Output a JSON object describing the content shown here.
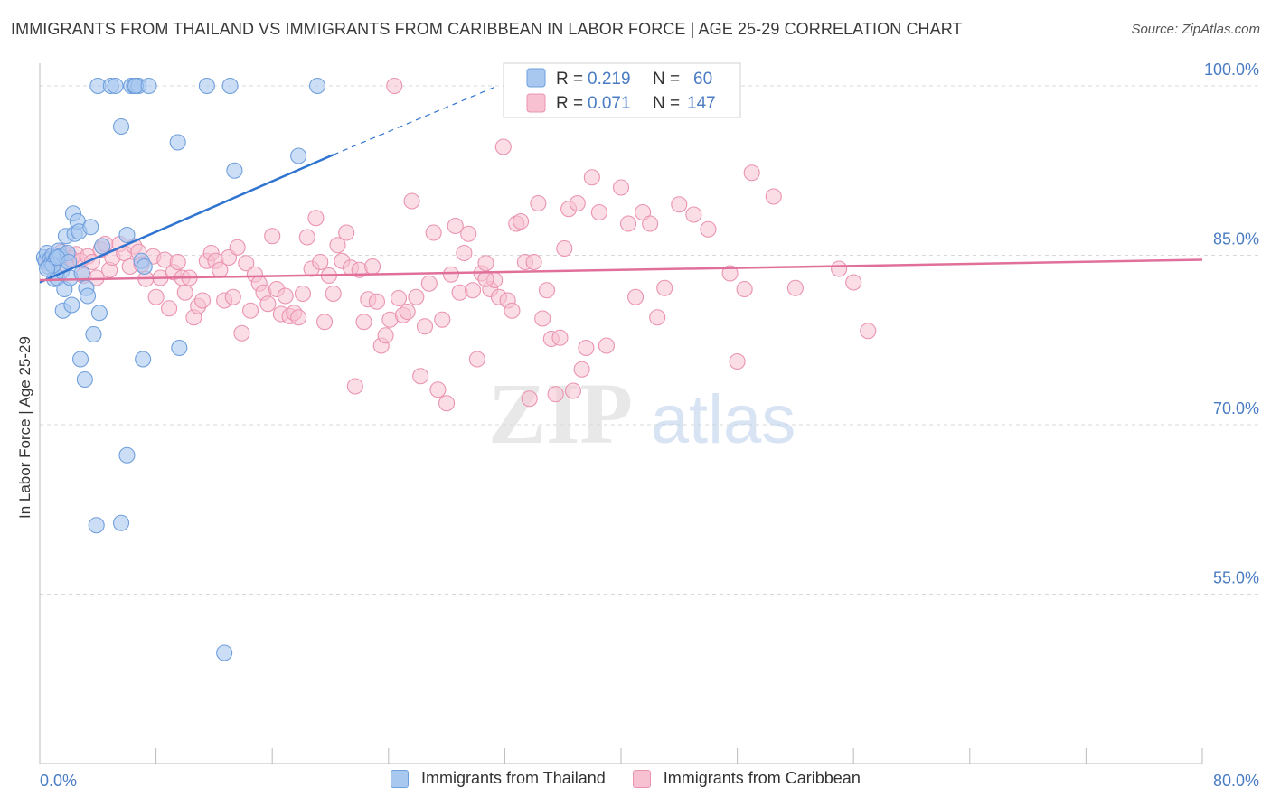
{
  "title": "IMMIGRANTS FROM THAILAND VS IMMIGRANTS FROM CARIBBEAN IN LABOR FORCE | AGE 25-29 CORRELATION CHART",
  "source": "Source: ZipAtlas.com",
  "watermark": {
    "zip": "ZIP",
    "atlas": "atlas"
  },
  "colors": {
    "thailand_fill": "#a9c8f0",
    "thailand_stroke": "#6f9fdc",
    "thailand_line": "#2f74d0",
    "caribbean_fill": "#f7c1d2",
    "caribbean_stroke": "#ea93b0",
    "caribbean_line": "#e0709a",
    "tick_label": "#4a7cc4",
    "grid": "#d8d8d8"
  },
  "legend": {
    "r_label": "R =",
    "n_label": "N =",
    "thailand": {
      "r": "0.219",
      "n": "60"
    },
    "caribbean": {
      "r": "0.071",
      "n": "147"
    }
  },
  "chart_data": {
    "type": "scatter",
    "title": "IMMIGRANTS FROM THAILAND VS IMMIGRANTS FROM CARIBBEAN IN LABOR FORCE | AGE 25-29 CORRELATION CHART",
    "xlabel": "",
    "ylabel": "In Labor Force | Age 25-29",
    "xlim": [
      0,
      80
    ],
    "ylim": [
      40,
      102
    ],
    "x_tick_labels": [
      "0.0%",
      "80.0%"
    ],
    "y_ticks": [
      55,
      70,
      85,
      100
    ],
    "y_tick_labels": [
      "55.0%",
      "70.0%",
      "85.0%",
      "100.0%"
    ],
    "grid": true,
    "legend_placement": "top-center",
    "series": [
      {
        "name": "Immigrants from Thailand",
        "trend": {
          "x": [
            0,
            20.2
          ],
          "y": [
            82.6,
            93.9
          ],
          "dashed_to": [
            31.5,
            100.0
          ]
        },
        "points": [
          [
            0.3,
            84.8
          ],
          [
            0.4,
            84.5
          ],
          [
            0.5,
            85.2
          ],
          [
            0.6,
            84.0
          ],
          [
            0.7,
            84.6
          ],
          [
            0.8,
            84.3
          ],
          [
            0.9,
            85.0
          ],
          [
            1.0,
            82.9
          ],
          [
            1.1,
            84.7
          ],
          [
            1.2,
            83.0
          ],
          [
            1.3,
            85.4
          ],
          [
            1.4,
            84.9
          ],
          [
            1.5,
            83.6
          ],
          [
            1.6,
            80.1
          ],
          [
            1.7,
            82.0
          ],
          [
            1.8,
            86.7
          ],
          [
            1.9,
            85.2
          ],
          [
            2.1,
            83.0
          ],
          [
            2.2,
            80.6
          ],
          [
            2.3,
            88.7
          ],
          [
            2.4,
            86.9
          ],
          [
            2.6,
            88.0
          ],
          [
            2.7,
            87.1
          ],
          [
            2.8,
            75.8
          ],
          [
            2.9,
            83.4
          ],
          [
            3.1,
            74.0
          ],
          [
            3.2,
            82.1
          ],
          [
            3.3,
            81.4
          ],
          [
            3.5,
            87.5
          ],
          [
            3.7,
            78.0
          ],
          [
            4.1,
            79.9
          ],
          [
            4.3,
            85.8
          ],
          [
            4.0,
            100.0
          ],
          [
            4.9,
            100.0
          ],
          [
            5.2,
            100.0
          ],
          [
            5.6,
            96.4
          ],
          [
            6.0,
            67.3
          ],
          [
            3.9,
            61.1
          ],
          [
            5.6,
            61.3
          ],
          [
            6.0,
            86.8
          ],
          [
            6.3,
            100.0
          ],
          [
            6.5,
            100.0
          ],
          [
            6.8,
            100.0
          ],
          [
            6.6,
            100.0
          ],
          [
            7.0,
            84.5
          ],
          [
            7.1,
            75.8
          ],
          [
            7.2,
            84.0
          ],
          [
            7.5,
            100.0
          ],
          [
            9.5,
            95.0
          ],
          [
            9.6,
            76.8
          ],
          [
            11.5,
            100.0
          ],
          [
            12.7,
            49.8
          ],
          [
            13.1,
            100.0
          ],
          [
            13.4,
            92.5
          ],
          [
            17.8,
            93.8
          ],
          [
            19.1,
            100.0
          ],
          [
            0.9,
            84.1
          ],
          [
            1.2,
            84.8
          ],
          [
            2.0,
            84.4
          ],
          [
            0.5,
            83.8
          ]
        ]
      },
      {
        "name": "Immigrants from Caribbean",
        "trend": {
          "x": [
            0,
            80
          ],
          "y": [
            82.8,
            84.6
          ]
        },
        "points": [
          [
            0.5,
            84.3
          ],
          [
            0.8,
            84.9
          ],
          [
            1.2,
            84.6
          ],
          [
            1.5,
            85.3
          ],
          [
            1.8,
            84.2
          ],
          [
            2.0,
            85.0
          ],
          [
            2.2,
            84.7
          ],
          [
            2.5,
            85.1
          ],
          [
            2.8,
            84.5
          ],
          [
            3.0,
            83.2
          ],
          [
            3.3,
            84.9
          ],
          [
            3.6,
            84.4
          ],
          [
            3.9,
            83.0
          ],
          [
            4.2,
            85.5
          ],
          [
            4.5,
            86.0
          ],
          [
            4.8,
            83.7
          ],
          [
            5.0,
            84.8
          ],
          [
            5.5,
            86.0
          ],
          [
            5.8,
            85.2
          ],
          [
            6.2,
            84.0
          ],
          [
            6.5,
            85.8
          ],
          [
            6.8,
            85.3
          ],
          [
            7.0,
            84.2
          ],
          [
            7.3,
            82.9
          ],
          [
            7.8,
            84.9
          ],
          [
            8.0,
            81.3
          ],
          [
            8.3,
            83.0
          ],
          [
            8.6,
            84.6
          ],
          [
            8.9,
            80.3
          ],
          [
            9.2,
            83.5
          ],
          [
            9.5,
            84.4
          ],
          [
            9.8,
            83.0
          ],
          [
            10.0,
            81.7
          ],
          [
            10.3,
            83.0
          ],
          [
            10.6,
            79.5
          ],
          [
            10.9,
            80.5
          ],
          [
            11.2,
            81.0
          ],
          [
            11.5,
            84.5
          ],
          [
            11.8,
            85.2
          ],
          [
            12.1,
            84.5
          ],
          [
            12.4,
            83.7
          ],
          [
            12.7,
            81.0
          ],
          [
            13.0,
            84.8
          ],
          [
            13.3,
            81.3
          ],
          [
            13.6,
            85.7
          ],
          [
            13.9,
            78.1
          ],
          [
            14.2,
            84.3
          ],
          [
            14.5,
            80.1
          ],
          [
            14.8,
            83.3
          ],
          [
            15.1,
            82.5
          ],
          [
            15.4,
            81.7
          ],
          [
            15.7,
            80.7
          ],
          [
            16.0,
            86.7
          ],
          [
            16.3,
            82.0
          ],
          [
            16.6,
            79.8
          ],
          [
            16.9,
            81.4
          ],
          [
            17.2,
            79.6
          ],
          [
            17.5,
            79.9
          ],
          [
            17.8,
            79.5
          ],
          [
            18.1,
            81.6
          ],
          [
            18.4,
            86.6
          ],
          [
            18.7,
            83.8
          ],
          [
            19.0,
            88.3
          ],
          [
            19.3,
            84.4
          ],
          [
            19.6,
            79.1
          ],
          [
            19.9,
            83.2
          ],
          [
            20.2,
            81.6
          ],
          [
            20.5,
            85.9
          ],
          [
            20.8,
            84.5
          ],
          [
            21.1,
            87.0
          ],
          [
            21.4,
            83.9
          ],
          [
            21.7,
            73.4
          ],
          [
            22.0,
            83.7
          ],
          [
            22.3,
            79.1
          ],
          [
            22.6,
            81.1
          ],
          [
            22.9,
            84.0
          ],
          [
            23.2,
            80.9
          ],
          [
            23.5,
            77.0
          ],
          [
            23.8,
            77.9
          ],
          [
            24.1,
            79.3
          ],
          [
            24.4,
            100.0
          ],
          [
            24.7,
            81.2
          ],
          [
            25.0,
            79.7
          ],
          [
            25.3,
            80.0
          ],
          [
            25.6,
            89.8
          ],
          [
            25.9,
            81.3
          ],
          [
            26.2,
            74.3
          ],
          [
            26.5,
            78.7
          ],
          [
            26.8,
            82.5
          ],
          [
            27.1,
            87.0
          ],
          [
            27.4,
            73.1
          ],
          [
            27.7,
            79.3
          ],
          [
            28.0,
            71.9
          ],
          [
            28.3,
            83.3
          ],
          [
            28.6,
            87.6
          ],
          [
            28.9,
            81.7
          ],
          [
            29.2,
            85.2
          ],
          [
            29.5,
            86.9
          ],
          [
            29.8,
            81.9
          ],
          [
            30.1,
            75.8
          ],
          [
            30.4,
            83.4
          ],
          [
            30.7,
            84.3
          ],
          [
            31.0,
            82.0
          ],
          [
            31.3,
            82.8
          ],
          [
            31.6,
            81.3
          ],
          [
            31.9,
            94.6
          ],
          [
            32.2,
            81.0
          ],
          [
            32.5,
            80.1
          ],
          [
            32.8,
            87.8
          ],
          [
            33.1,
            88.0
          ],
          [
            33.4,
            84.4
          ],
          [
            33.7,
            72.3
          ],
          [
            34.0,
            84.4
          ],
          [
            34.3,
            89.6
          ],
          [
            34.6,
            79.4
          ],
          [
            34.9,
            81.9
          ],
          [
            35.2,
            77.6
          ],
          [
            35.5,
            72.7
          ],
          [
            35.8,
            77.7
          ],
          [
            36.1,
            85.6
          ],
          [
            36.4,
            89.1
          ],
          [
            36.7,
            73.0
          ],
          [
            37.0,
            89.6
          ],
          [
            37.3,
            74.9
          ],
          [
            37.6,
            76.8
          ],
          [
            38.0,
            91.9
          ],
          [
            38.5,
            88.8
          ],
          [
            39.0,
            77.0
          ],
          [
            40.0,
            91.0
          ],
          [
            40.5,
            87.8
          ],
          [
            41.0,
            81.3
          ],
          [
            41.5,
            88.8
          ],
          [
            42.0,
            87.8
          ],
          [
            42.5,
            79.5
          ],
          [
            43.0,
            82.1
          ],
          [
            44.0,
            89.5
          ],
          [
            45.0,
            88.6
          ],
          [
            45.5,
            100.0
          ],
          [
            46.0,
            87.3
          ],
          [
            47.5,
            83.4
          ],
          [
            48.0,
            75.6
          ],
          [
            48.5,
            82.0
          ],
          [
            49.0,
            92.3
          ],
          [
            50.5,
            90.2
          ],
          [
            52.0,
            82.1
          ],
          [
            55.0,
            83.8
          ],
          [
            56.0,
            82.6
          ],
          [
            57.0,
            78.3
          ],
          [
            44.9,
            98.2
          ],
          [
            30.7,
            82.9
          ]
        ]
      }
    ]
  },
  "series_labels": {
    "thailand": "Immigrants from Thailand",
    "caribbean": "Immigrants from Caribbean"
  }
}
